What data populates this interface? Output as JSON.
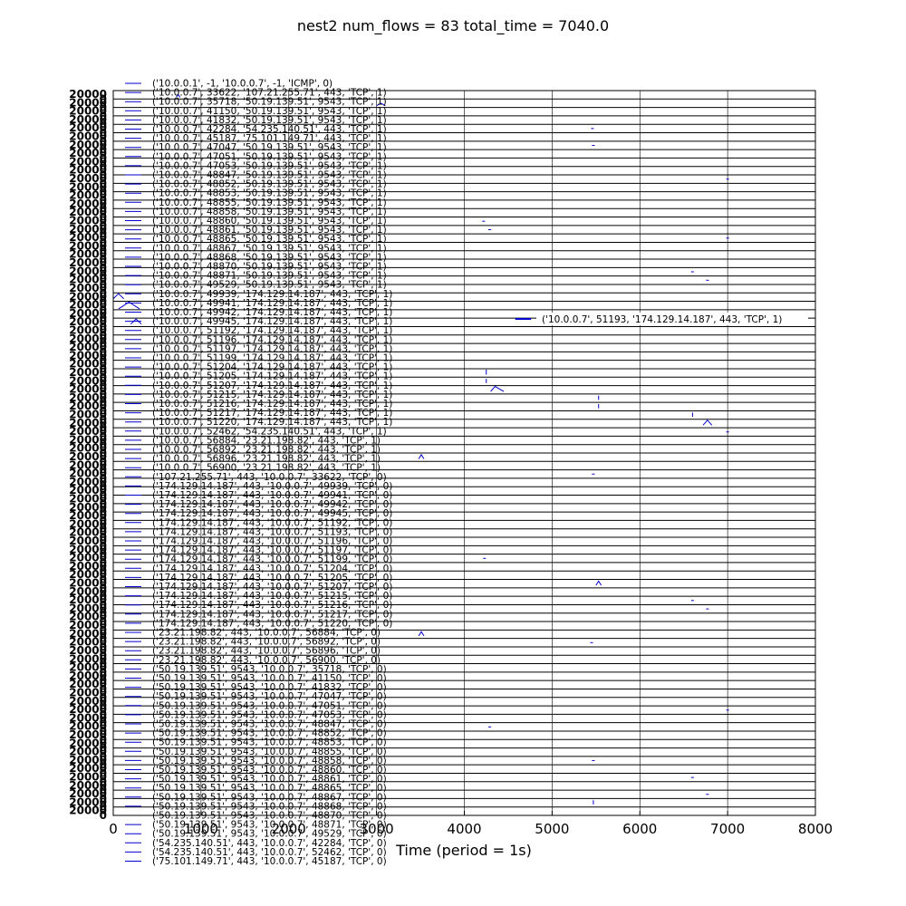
{
  "chart_data": {
    "type": "line",
    "title": "nest2 num_flows = 83 total_time = 7040.0",
    "xlabel": "Time (period = 1s)",
    "ylabel": "",
    "xlim": [
      0,
      8000
    ],
    "x_ticks": [
      "0",
      "1000",
      "2000",
      "3000",
      "4000",
      "5000",
      "6000",
      "7000",
      "8000"
    ],
    "grid": true,
    "legend_position": "upper-left",
    "series_color": "#0000cc",
    "highlight_label": "('10.0.0.7', 51193, '174.129.14.187', 443, 'TCP', 1)",
    "highlight_segment_x": [
      4580,
      4760
    ],
    "series": [
      {
        "name": "('10.0.0.1', -1, '10.0.0.7', -1, 'ICMP', 0)",
        "points": [
          [
            720,
            0.25
          ],
          [
            740,
            0.55
          ],
          [
            760,
            0.2
          ]
        ]
      },
      {
        "name": "('10.0.0.7', 33622, '107.21.255.71', 443, 'TCP', 1)",
        "points": [
          [
            3000,
            0.2
          ],
          [
            3050,
            0.5
          ],
          [
            3100,
            0.2
          ]
        ]
      },
      {
        "name": "('10.0.0.7', 35718, '50.19.139.51', 9543, 'TCP', 1)",
        "points": []
      },
      {
        "name": "('10.0.0.7', 41150, '50.19.139.51', 9543, 'TCP', 1)",
        "points": []
      },
      {
        "name": "('10.0.0.7', 41832, '50.19.139.51', 9543, 'TCP', 1)",
        "points": [
          [
            5460,
            0.5
          ]
        ]
      },
      {
        "name": "('10.0.0.7', 42284, '54.235.140.51', 443, 'TCP', 1)",
        "points": []
      },
      {
        "name": "('10.0.0.7', 45187, '75.101.149.71', 443, 'TCP', 1)",
        "points": [
          [
            5470,
            0.5
          ]
        ]
      },
      {
        "name": "('10.0.0.7', 47047, '50.19.139.51', 9543, 'TCP', 1)",
        "points": []
      },
      {
        "name": "('10.0.0.7', 47051, '50.19.139.51', 9543, 'TCP', 1)",
        "points": []
      },
      {
        "name": "('10.0.0.7', 47053, '50.19.139.51', 9543, 'TCP', 1)",
        "points": []
      },
      {
        "name": "('10.0.0.7', 48847, '50.19.139.51', 9543, 'TCP', 1)",
        "points": [
          [
            7000,
            0.5
          ]
        ]
      },
      {
        "name": "('10.0.0.7', 48852, '50.19.139.51', 9543, 'TCP', 1)",
        "points": []
      },
      {
        "name": "('10.0.0.7', 48853, '50.19.139.51', 9543, 'TCP', 1)",
        "points": []
      },
      {
        "name": "('10.0.0.7', 48855, '50.19.139.51', 9543, 'TCP', 1)",
        "points": []
      },
      {
        "name": "('10.0.0.7', 48858, '50.19.139.51', 9543, 'TCP', 1)",
        "points": []
      },
      {
        "name": "('10.0.0.7', 48860, '50.19.139.51', 9543, 'TCP', 1)",
        "points": [
          [
            4220,
            0.5
          ]
        ]
      },
      {
        "name": "('10.0.0.7', 48861, '50.19.139.51', 9543, 'TCP', 1)",
        "points": [
          [
            4290,
            0.5
          ]
        ]
      },
      {
        "name": "('10.0.0.7', 48865, '50.19.139.51', 9543, 'TCP', 1)",
        "points": [
          [
            7000,
            0.5
          ]
        ]
      },
      {
        "name": "('10.0.0.7', 48867, '50.19.139.51', 9543, 'TCP', 1)",
        "points": []
      },
      {
        "name": "('10.0.0.7', 48868, '50.19.139.51', 9543, 'TCP', 1)",
        "points": []
      },
      {
        "name": "('10.0.0.7', 48870, '50.19.139.51', 9543, 'TCP', 1)",
        "points": []
      },
      {
        "name": "('10.0.0.7', 48871, '50.19.139.51', 9543, 'TCP', 1)",
        "points": [
          [
            6600,
            0.5
          ]
        ]
      },
      {
        "name": "('10.0.0.7', 49529, '50.19.139.51', 9543, 'TCP', 1)",
        "points": [
          [
            6770,
            0.5
          ]
        ]
      },
      {
        "name": "('10.0.0.7', 49939, '174.129.14.187', 443, 'TCP', 1)",
        "points": []
      },
      {
        "name": "('10.0.0.7', 49941, '174.129.14.187', 443, 'TCP', 1)",
        "points": [
          [
            0,
            0.3
          ],
          [
            60,
            0.9
          ],
          [
            120,
            0.3
          ]
        ]
      },
      {
        "name": "('10.0.0.7', 49942, '174.129.14.187', 443, 'TCP', 1)",
        "points": [
          [
            60,
            0.1
          ],
          [
            180,
            0.9
          ],
          [
            300,
            0.1
          ]
        ]
      },
      {
        "name": "('10.0.0.7', 49945, '174.129.14.187', 443, 'TCP', 1)",
        "points": []
      },
      {
        "name": "('10.0.0.7', 51192, '174.129.14.187', 443, 'TCP', 1)",
        "points": [
          [
            200,
            0.3
          ],
          [
            260,
            0.9
          ],
          [
            320,
            0.3
          ]
        ]
      },
      {
        "name": "('10.0.0.7', 51196, '174.129.14.187', 443, 'TCP', 1)",
        "points": []
      },
      {
        "name": "('10.0.0.7', 51197, '174.129.14.187', 443, 'TCP', 1)",
        "points": []
      },
      {
        "name": "('10.0.0.7', 51199, '174.129.14.187', 443, 'TCP', 1)",
        "points": []
      },
      {
        "name": "('10.0.0.7', 51204, '174.129.14.187', 443, 'TCP', 1)",
        "points": []
      },
      {
        "name": "('10.0.0.7', 51205, '174.129.14.187', 443, 'TCP', 1)",
        "points": []
      },
      {
        "name": "('10.0.0.7', 51207, '174.129.14.187', 443, 'TCP', 1)",
        "points": [
          [
            4250,
            0.3
          ],
          [
            4250,
            0.9
          ]
        ]
      },
      {
        "name": "('10.0.0.7', 51215, '174.129.14.187', 443, 'TCP', 1)",
        "points": [
          [
            4250,
            0.3
          ],
          [
            4250,
            0.8
          ]
        ]
      },
      {
        "name": "('10.0.0.7', 51216, '174.129.14.187', 443, 'TCP', 1)",
        "points": [
          [
            4300,
            0.3
          ],
          [
            4350,
            0.9
          ],
          [
            4450,
            0.3
          ]
        ]
      },
      {
        "name": "('10.0.0.7', 51217, '174.129.14.187', 443, 'TCP', 1)",
        "points": [
          [
            5530,
            0.3
          ],
          [
            5530,
            0.8
          ]
        ]
      },
      {
        "name": "('10.0.0.7', 51220, '174.129.14.187', 443, 'TCP', 1)",
        "points": [
          [
            5530,
            0.3
          ],
          [
            5530,
            0.8
          ]
        ]
      },
      {
        "name": "('10.0.0.7', 52462, '54.235.140.51', 443, 'TCP', 1)",
        "points": [
          [
            6600,
            0.3
          ],
          [
            6600,
            0.8
          ]
        ]
      },
      {
        "name": "('10.0.0.7', 56884, '23.21.198.82', 443, 'TCP', 1)",
        "points": [
          [
            6720,
            0.3
          ],
          [
            6770,
            0.9
          ],
          [
            6820,
            0.3
          ]
        ]
      },
      {
        "name": "('10.0.0.7', 56892, '23.21.198.82', 443, 'TCP', 1)",
        "points": [
          [
            7000,
            0.5
          ]
        ]
      },
      {
        "name": "('10.0.0.7', 56896, '23.21.198.82', 443, 'TCP', 1)",
        "points": []
      },
      {
        "name": "('10.0.0.7', 56900, '23.21.198.82', 443, 'TCP', 1)",
        "points": []
      },
      {
        "name": "('107.21.255.71', 443, '10.0.0.7', 33622, 'TCP', 0)",
        "points": [
          [
            3480,
            0.3
          ],
          [
            3510,
            0.8
          ],
          [
            3540,
            0.3
          ]
        ]
      },
      {
        "name": "('174.129.14.187', 443, '10.0.0.7', 49939, 'TCP', 0)",
        "points": []
      },
      {
        "name": "('174.129.14.187', 443, '10.0.0.7', 49941, 'TCP', 0)",
        "points": [
          [
            5470,
            0.5
          ]
        ]
      },
      {
        "name": "('174.129.14.187', 443, '10.0.0.7', 49942, 'TCP', 0)",
        "points": []
      },
      {
        "name": "('174.129.14.187', 443, '10.0.0.7', 49945, 'TCP', 0)",
        "points": []
      },
      {
        "name": "('174.129.14.187', 443, '10.0.0.7', 51192, 'TCP', 0)",
        "points": []
      },
      {
        "name": "('174.129.14.187', 443, '10.0.0.7', 51193, 'TCP', 0)",
        "points": []
      },
      {
        "name": "('174.129.14.187', 443, '10.0.0.7', 51196, 'TCP', 0)",
        "points": []
      },
      {
        "name": "('174.129.14.187', 443, '10.0.0.7', 51197, 'TCP', 0)",
        "points": []
      },
      {
        "name": "('174.129.14.187', 443, '10.0.0.7', 51199, 'TCP', 0)",
        "points": []
      },
      {
        "name": "('174.129.14.187', 443, '10.0.0.7', 51204, 'TCP', 0)",
        "points": []
      },
      {
        "name": "('174.129.14.187', 443, '10.0.0.7', 51205, 'TCP', 0)",
        "points": []
      },
      {
        "name": "('174.129.14.187', 443, '10.0.0.7', 51207, 'TCP', 0)",
        "points": [
          [
            4230,
            0.5
          ]
        ]
      },
      {
        "name": "('174.129.14.187', 443, '10.0.0.7', 51215, 'TCP', 0)",
        "points": []
      },
      {
        "name": "('174.129.14.187', 443, '10.0.0.7', 51216, 'TCP', 0)",
        "points": []
      },
      {
        "name": "('174.129.14.187', 443, '10.0.0.7', 51217, 'TCP', 0)",
        "points": [
          [
            5500,
            0.3
          ],
          [
            5530,
            0.8
          ],
          [
            5560,
            0.3
          ]
        ]
      },
      {
        "name": "('174.129.14.187', 443, '10.0.0.7', 51220, 'TCP', 0)",
        "points": []
      },
      {
        "name": "('23.21.198.82', 443, '10.0.0.7', 56884, 'TCP', 0)",
        "points": [
          [
            6600,
            0.5
          ]
        ]
      },
      {
        "name": "('23.21.198.82', 443, '10.0.0.7', 56892, 'TCP', 0)",
        "points": [
          [
            6770,
            0.5
          ]
        ]
      },
      {
        "name": "('23.21.198.82', 443, '10.0.0.7', 56896, 'TCP', 0)",
        "points": []
      },
      {
        "name": "('23.21.198.82', 443, '10.0.0.7', 56900, 'TCP', 0)",
        "points": []
      },
      {
        "name": "('50.19.139.51', 9543, '10.0.0.7', 35718, 'TCP', 0)",
        "points": [
          [
            3480,
            0.3
          ],
          [
            3510,
            0.8
          ],
          [
            3540,
            0.3
          ]
        ]
      },
      {
        "name": "('50.19.139.51', 9543, '10.0.0.7', 41150, 'TCP', 0)",
        "points": [
          [
            5450,
            0.5
          ]
        ]
      },
      {
        "name": "('50.19.139.51', 9543, '10.0.0.7', 41832, 'TCP', 0)",
        "points": []
      },
      {
        "name": "('50.19.139.51', 9543, '10.0.0.7', 47047, 'TCP', 0)",
        "points": []
      },
      {
        "name": "('50.19.139.51', 9543, '10.0.0.7', 47051, 'TCP', 0)",
        "points": []
      },
      {
        "name": "('50.19.139.51', 9543, '10.0.0.7', 47053, 'TCP', 0)",
        "points": []
      },
      {
        "name": "('50.19.139.51', 9543, '10.0.0.7', 48847, 'TCP', 0)",
        "points": []
      },
      {
        "name": "('50.19.139.51', 9543, '10.0.0.7', 48852, 'TCP', 0)",
        "points": []
      },
      {
        "name": "('50.19.139.51', 9543, '10.0.0.7', 48853, 'TCP', 0)",
        "points": []
      },
      {
        "name": "('50.19.139.51', 9543, '10.0.0.7', 48855, 'TCP', 0)",
        "points": [
          [
            7000,
            0.5
          ]
        ]
      },
      {
        "name": "('50.19.139.51', 9543, '10.0.0.7', 48858, 'TCP', 0)",
        "points": []
      },
      {
        "name": "('50.19.139.51', 9543, '10.0.0.7', 48860, 'TCP', 0)",
        "points": [
          [
            4290,
            0.5
          ]
        ]
      },
      {
        "name": "('50.19.139.51', 9543, '10.0.0.7', 48861, 'TCP', 0)",
        "points": []
      },
      {
        "name": "('50.19.139.51', 9543, '10.0.0.7', 48865, 'TCP', 0)",
        "points": []
      },
      {
        "name": "('50.19.139.51', 9543, '10.0.0.7', 48867, 'TCP', 0)",
        "points": []
      },
      {
        "name": "('50.19.139.51', 9543, '10.0.0.7', 48868, 'TCP', 0)",
        "points": [
          [
            5470,
            0.5
          ]
        ]
      },
      {
        "name": "('50.19.139.51', 9543, '10.0.0.7', 48870, 'TCP', 0)",
        "points": []
      },
      {
        "name": "('50.19.139.51', 9543, '10.0.0.7', 48871, 'TCP', 0)",
        "points": [
          [
            6600,
            0.5
          ]
        ]
      },
      {
        "name": "('50.19.139.51', 9543, '10.0.0.7', 49529, 'TCP', 0)",
        "points": []
      },
      {
        "name": "('54.235.140.51', 443, '10.0.0.7', 42284, 'TCP', 0)",
        "points": [
          [
            6770,
            0.5
          ]
        ]
      },
      {
        "name": "('54.235.140.51', 443, '10.0.0.7', 52462, 'TCP', 0)",
        "points": [
          [
            5470,
            0.3
          ],
          [
            5470,
            0.8
          ]
        ]
      },
      {
        "name": "('75.101.149.71', 443, '10.0.0.7', 45187, 'TCP', 0)",
        "points": []
      }
    ]
  }
}
